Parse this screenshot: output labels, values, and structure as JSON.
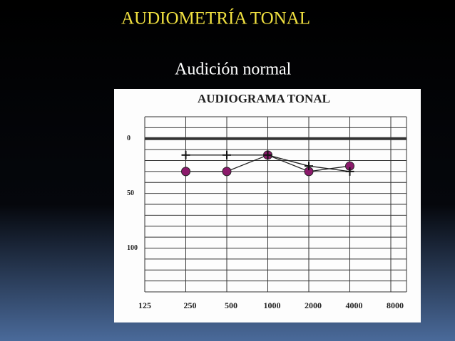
{
  "slide": {
    "title": "AUDIOMETRÍA TONAL",
    "subtitle": "Audición normal"
  },
  "chart_data": {
    "type": "line",
    "title": "AUDIOGRAMA TONAL",
    "categories": [
      "125",
      "250",
      "500",
      "1000",
      "2000",
      "4000",
      "8000"
    ],
    "series": [
      {
        "marker": "circle",
        "color": "#8b1a6b",
        "values": [
          null,
          30,
          30,
          15,
          30,
          25,
          null
        ]
      },
      {
        "marker": "cross",
        "color": "#111111",
        "values": [
          null,
          15,
          15,
          15,
          25,
          30,
          null
        ]
      }
    ],
    "ylim": [
      -20,
      140
    ],
    "yticks": [
      0,
      50,
      100
    ],
    "ygrid": [
      -20,
      -10,
      0,
      10,
      20,
      30,
      40,
      50,
      60,
      70,
      80,
      90,
      100,
      110,
      120,
      130,
      140
    ],
    "inverted_y": true,
    "grid": true
  }
}
